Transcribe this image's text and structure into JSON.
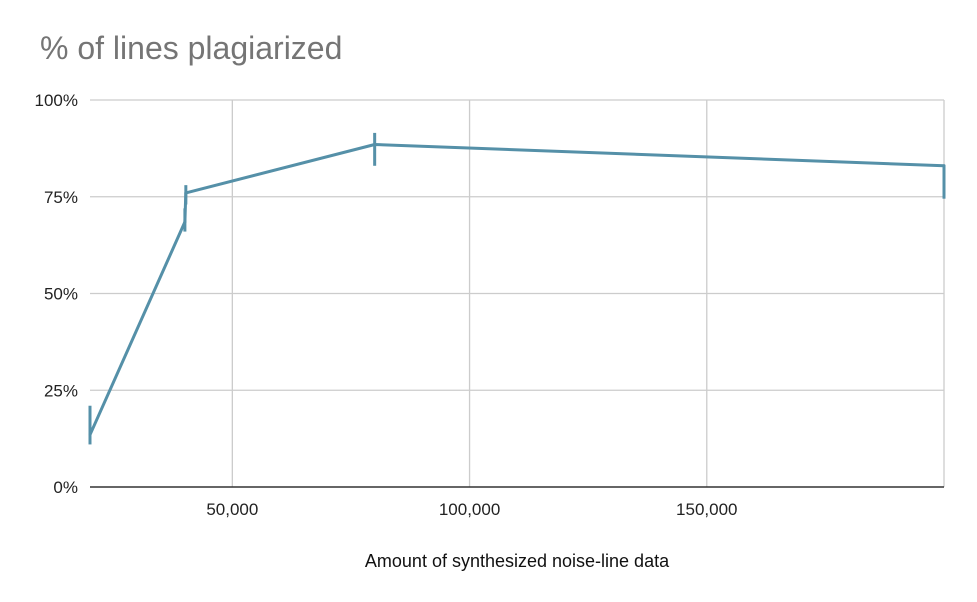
{
  "chart_data": {
    "type": "line",
    "title": "% of lines plagiarized",
    "xlabel": "Amount of synthesized noise-line data",
    "ylabel": "",
    "xlim": [
      20000,
      200000
    ],
    "ylim": [
      0,
      100
    ],
    "x_ticks": [
      {
        "value": 50000,
        "label": "50,000"
      },
      {
        "value": 100000,
        "label": "100,000"
      },
      {
        "value": 150000,
        "label": "150,000"
      }
    ],
    "x_gridlines": [
      50000,
      100000,
      150000,
      200000
    ],
    "y_ticks": [
      {
        "value": 0,
        "label": "0%"
      },
      {
        "value": 25,
        "label": "25%"
      },
      {
        "value": 50,
        "label": "50%"
      },
      {
        "value": 75,
        "label": "75%"
      },
      {
        "value": 100,
        "label": "100%"
      }
    ],
    "grid": true,
    "series": [
      {
        "color": "#5590a8",
        "points": [
          {
            "x": 20000,
            "y": 13.5,
            "err_low": 11,
            "err_high": 21
          },
          {
            "x": 40000,
            "y": 68.5,
            "err_low": 66,
            "err_high": 72
          },
          {
            "x": 40200,
            "y": 76,
            "err_low": 73,
            "err_high": 78
          },
          {
            "x": 80000,
            "y": 88.5,
            "err_low": 83,
            "err_high": 91.5
          },
          {
            "x": 200000,
            "y": 83,
            "err_low": 74.5,
            "err_high": 83
          }
        ]
      }
    ]
  }
}
